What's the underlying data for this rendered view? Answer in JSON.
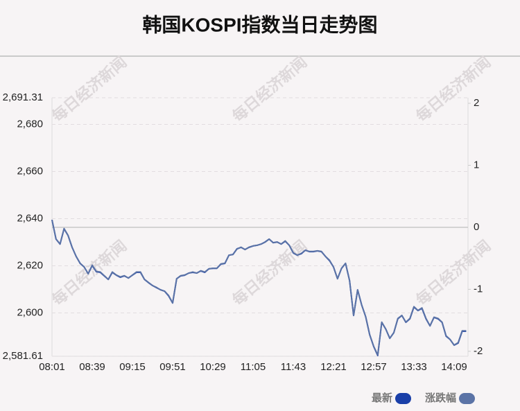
{
  "chart_data": {
    "type": "line",
    "title": "韩国KOSPI指数当日走势图",
    "watermark": "每日经济新闻",
    "categories": [
      "08:01",
      null,
      null,
      null,
      null,
      null,
      null,
      null,
      null,
      null,
      "08:39",
      null,
      null,
      null,
      null,
      null,
      null,
      null,
      null,
      null,
      "09:15",
      null,
      null,
      null,
      null,
      null,
      null,
      null,
      null,
      null,
      "09:51",
      null,
      null,
      null,
      null,
      null,
      null,
      null,
      null,
      null,
      "10:29",
      null,
      null,
      null,
      null,
      null,
      null,
      null,
      null,
      null,
      "11:05",
      null,
      null,
      null,
      null,
      null,
      null,
      null,
      null,
      null,
      "11:43",
      null,
      null,
      null,
      null,
      null,
      null,
      null,
      null,
      null,
      "12:21",
      null,
      null,
      null,
      null,
      null,
      null,
      null,
      null,
      null,
      "12:57",
      null,
      null,
      null,
      null,
      null,
      null,
      null,
      null,
      null,
      "13:33",
      null,
      null,
      null,
      null,
      null,
      null,
      null,
      null,
      null,
      "14:09",
      null,
      null,
      null
    ],
    "series": [
      {
        "name": "最新",
        "color": "#1a3fa8",
        "values": [
          2639.5,
          2631.3,
          2629.2,
          2635.7,
          2632.8,
          2627.8,
          2624,
          2621,
          2619.5,
          2616.6,
          2620.1,
          2617.5,
          2617.2,
          2615.7,
          2614.2,
          2617.2,
          2616,
          2615.1,
          2615.7,
          2614.8,
          2616,
          2617.2,
          2617.2,
          2614.2,
          2612.8,
          2611.6,
          2610.7,
          2609.8,
          2609.2,
          2607.2,
          2604.2,
          2614.5,
          2615.7,
          2616,
          2616.9,
          2617.2,
          2616.9,
          2617.8,
          2617.2,
          2618.7,
          2618.9,
          2618.9,
          2620.7,
          2621,
          2624.5,
          2624.8,
          2627.2,
          2627.8,
          2626.9,
          2627.8,
          2628.4,
          2628.7,
          2629.2,
          2630.1,
          2631.3,
          2629.8,
          2630.1,
          2629.2,
          2630.4,
          2628.7,
          2625.4,
          2624.5,
          2625.1,
          2626.6,
          2626,
          2626,
          2626.3,
          2626,
          2624,
          2622.2,
          2619.5,
          2614.5,
          2618.9,
          2621,
          2613.7,
          2598.9,
          2609.8,
          2603.4,
          2598.4,
          2590.7,
          2585.7,
          2581.9,
          2596,
          2593.1,
          2589.2,
          2591.6,
          2597.5,
          2598.9,
          2596,
          2597.5,
          2602.5,
          2601,
          2601.9,
          2597.5,
          2594.5,
          2598.1,
          2597.5,
          2596,
          2590.1,
          2588.7,
          2586.3,
          2587.2,
          2592.2,
          2592.2
        ]
      },
      {
        "name": "涨跌幅",
        "color": "#5b73a6",
        "axis": "y2",
        "values": [
          0.12,
          -0.19,
          -0.27,
          -0.02,
          -0.13,
          -0.32,
          -0.47,
          -0.58,
          -0.64,
          -0.75,
          -0.61,
          -0.71,
          -0.72,
          -0.78,
          -0.84,
          -0.72,
          -0.77,
          -0.8,
          -0.78,
          -0.82,
          -0.77,
          -0.72,
          -0.72,
          -0.84,
          -0.89,
          -0.94,
          -0.97,
          -1.01,
          -1.03,
          -1.1,
          -1.22,
          -0.83,
          -0.78,
          -0.77,
          -0.74,
          -0.72,
          -0.74,
          -0.7,
          -0.72,
          -0.67,
          -0.66,
          -0.66,
          -0.59,
          -0.58,
          -0.45,
          -0.44,
          -0.35,
          -0.32,
          -0.36,
          -0.32,
          -0.3,
          -0.29,
          -0.27,
          -0.24,
          -0.19,
          -0.25,
          -0.24,
          -0.27,
          -0.22,
          -0.29,
          -0.41,
          -0.45,
          -0.42,
          -0.37,
          -0.39,
          -0.39,
          -0.38,
          -0.39,
          -0.47,
          -0.53,
          -0.64,
          -0.83,
          -0.66,
          -0.58,
          -0.86,
          -1.42,
          -1.01,
          -1.25,
          -1.44,
          -1.73,
          -1.92,
          -2.06,
          -1.53,
          -1.64,
          -1.79,
          -1.7,
          -1.47,
          -1.42,
          -1.53,
          -1.47,
          -1.28,
          -1.34,
          -1.3,
          -1.47,
          -1.59,
          -1.45,
          -1.47,
          -1.53,
          -1.75,
          -1.81,
          -1.9,
          -1.86,
          -1.67,
          -1.67
        ]
      }
    ],
    "ylim": [
      2581.61,
      2691.31
    ],
    "yticks": [
      {
        "value": 2581.61,
        "label": "2,581.61"
      },
      {
        "value": 2600,
        "label": "2,600"
      },
      {
        "value": 2620,
        "label": "2,620"
      },
      {
        "value": 2640,
        "label": "2,640"
      },
      {
        "value": 2660,
        "label": "2,660"
      },
      {
        "value": 2680,
        "label": "2,680"
      },
      {
        "value": 2691.31,
        "label": "2,691.31"
      }
    ],
    "y2lim": [
      -2.08,
      2.09
    ],
    "y2ticks": [
      2,
      1,
      0,
      -1,
      -2
    ],
    "grid": true
  }
}
